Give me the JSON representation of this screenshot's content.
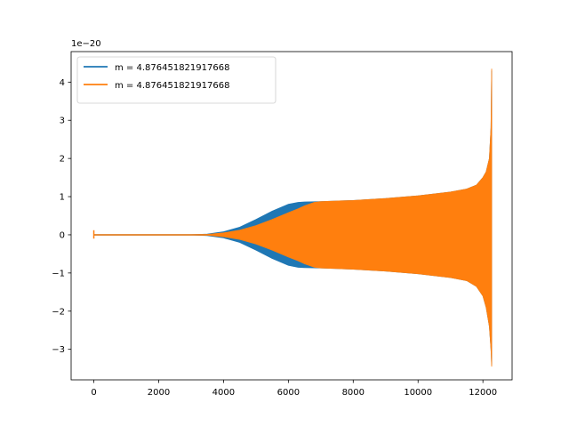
{
  "chart_data": {
    "type": "line",
    "title": "",
    "xlabel": "",
    "ylabel": "",
    "y_offset_label": "1e−20",
    "xlim": [
      -700,
      12900
    ],
    "ylim": [
      -3.8,
      4.8
    ],
    "xticks": [
      0,
      2000,
      4000,
      6000,
      8000,
      10000,
      12000
    ],
    "xtick_labels": [
      "0",
      "2000",
      "4000",
      "6000",
      "8000",
      "10000",
      "12000"
    ],
    "yticks": [
      -3,
      -2,
      -1,
      0,
      1,
      2,
      3,
      4
    ],
    "ytick_labels": [
      "−3",
      "−2",
      "−1",
      "0",
      "1",
      "2",
      "3",
      "4"
    ],
    "grid": false,
    "legend_position": "top-left",
    "series": [
      {
        "name": "m = 4.876451821917668",
        "color": "#1f77b4",
        "envelope_x": [
          0,
          3000,
          3500,
          4000,
          4500,
          5000,
          5500,
          6000,
          6300,
          6500,
          7000,
          8000,
          9000,
          10000,
          11000,
          11500,
          11800,
          12000,
          12100,
          12200,
          12250,
          12270
        ],
        "envelope_upper": [
          0.0,
          0.0,
          0.02,
          0.08,
          0.2,
          0.4,
          0.62,
          0.8,
          0.85,
          0.86,
          0.87,
          0.9,
          0.95,
          1.02,
          1.12,
          1.2,
          1.3,
          1.5,
          1.65,
          2.0,
          2.8,
          4.3
        ],
        "envelope_lower": [
          0.0,
          0.0,
          -0.02,
          -0.08,
          -0.2,
          -0.4,
          -0.62,
          -0.8,
          -0.85,
          -0.86,
          -0.87,
          -0.9,
          -0.95,
          -1.02,
          -1.12,
          -1.2,
          -1.35,
          -1.6,
          -1.9,
          -2.4,
          -3.0,
          -3.4
        ]
      },
      {
        "name": "m = 4.876451821917668",
        "color": "#ff7f0e",
        "envelope_x": [
          0,
          3000,
          3500,
          4000,
          4500,
          5000,
          5500,
          6000,
          6300,
          6500,
          6800,
          7000,
          8000,
          9000,
          10000,
          11000,
          11500,
          11800,
          12000,
          12100,
          12200,
          12250,
          12270
        ],
        "envelope_upper": [
          0.0,
          0.0,
          0.01,
          0.05,
          0.12,
          0.24,
          0.4,
          0.58,
          0.68,
          0.76,
          0.85,
          0.87,
          0.9,
          0.95,
          1.02,
          1.12,
          1.2,
          1.3,
          1.5,
          1.65,
          2.0,
          2.8,
          4.35
        ],
        "envelope_lower": [
          0.0,
          0.0,
          -0.01,
          -0.05,
          -0.12,
          -0.24,
          -0.4,
          -0.58,
          -0.68,
          -0.76,
          -0.85,
          -0.87,
          -0.9,
          -0.95,
          -1.02,
          -1.12,
          -1.2,
          -1.35,
          -1.6,
          -1.9,
          -2.4,
          -3.0,
          -3.45
        ],
        "start_spike": [
          0.12,
          -0.1
        ]
      }
    ]
  }
}
